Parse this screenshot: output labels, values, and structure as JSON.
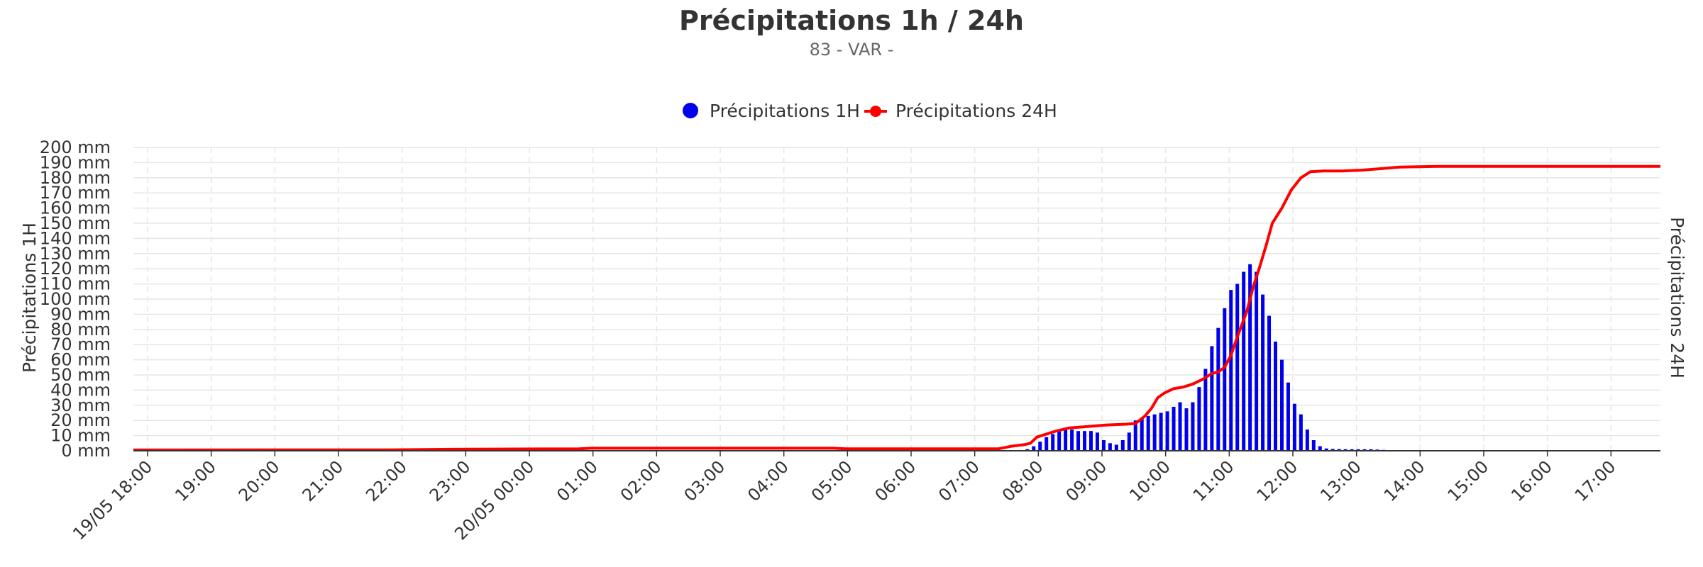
{
  "chart_data": {
    "type": "bar+line",
    "title": "Précipitations 1h / 24h",
    "subtitle": "83 - VAR -",
    "legend_position": "top-center",
    "grid": true,
    "y_left_label": "Précipitations 1H",
    "y_right_label": "Précipitations 24H",
    "ylim": [
      0,
      200
    ],
    "y_ticks": [
      "0 mm",
      "10 mm",
      "20 mm",
      "30 mm",
      "40 mm",
      "50 mm",
      "60 mm",
      "70 mm",
      "80 mm",
      "90 mm",
      "100 mm",
      "110 mm",
      "120 mm",
      "130 mm",
      "140 mm",
      "150 mm",
      "160 mm",
      "170 mm",
      "180 mm",
      "190 mm",
      "200 mm"
    ],
    "x_hour_start": 18,
    "x_hour_end": 42,
    "x_ticks": [
      "19/05 18:00",
      "19:00",
      "20:00",
      "21:00",
      "22:00",
      "23:00",
      "20/05 00:00",
      "01:00",
      "02:00",
      "03:00",
      "04:00",
      "05:00",
      "06:00",
      "07:00",
      "08:00",
      "09:00",
      "10:00",
      "11:00",
      "12:00",
      "13:00",
      "14:00",
      "15:00",
      "16:00",
      "17:00"
    ],
    "colors": {
      "series_1h": "#0000ee",
      "series_24h": "#ff0000",
      "axis": "#333333"
    },
    "series": [
      {
        "name": "Précipitations 1H",
        "kind": "bar",
        "color": "#0000ee",
        "points": [
          [
            31.8,
            0.3
          ],
          [
            31.95,
            0.5
          ],
          [
            32.05,
            1
          ],
          [
            32.15,
            3
          ],
          [
            32.25,
            6
          ],
          [
            32.35,
            9
          ],
          [
            32.45,
            11
          ],
          [
            32.55,
            13
          ],
          [
            32.65,
            14
          ],
          [
            32.75,
            14
          ],
          [
            32.85,
            13
          ],
          [
            32.95,
            13
          ],
          [
            33.05,
            13
          ],
          [
            33.15,
            12
          ],
          [
            33.25,
            7
          ],
          [
            33.35,
            5
          ],
          [
            33.45,
            4
          ],
          [
            33.55,
            7
          ],
          [
            33.65,
            12
          ],
          [
            33.75,
            20
          ],
          [
            33.85,
            21
          ],
          [
            33.95,
            23
          ],
          [
            34.05,
            24
          ],
          [
            34.15,
            25
          ],
          [
            34.25,
            26
          ],
          [
            34.35,
            29
          ],
          [
            34.45,
            32
          ],
          [
            34.55,
            28
          ],
          [
            34.65,
            32
          ],
          [
            34.75,
            42
          ],
          [
            34.85,
            54
          ],
          [
            34.95,
            69
          ],
          [
            35.05,
            81
          ],
          [
            35.15,
            94
          ],
          [
            35.25,
            106
          ],
          [
            35.35,
            110
          ],
          [
            35.45,
            118
          ],
          [
            35.55,
            123
          ],
          [
            35.65,
            118
          ],
          [
            35.75,
            103
          ],
          [
            35.85,
            89
          ],
          [
            35.95,
            72
          ],
          [
            36.05,
            60
          ],
          [
            36.15,
            45
          ],
          [
            36.25,
            31
          ],
          [
            36.35,
            24
          ],
          [
            36.45,
            14
          ],
          [
            36.55,
            7
          ],
          [
            36.65,
            3
          ],
          [
            36.75,
            1.5
          ],
          [
            36.85,
            1.2
          ],
          [
            36.95,
            1.1
          ],
          [
            37.05,
            1
          ],
          [
            37.15,
            1
          ],
          [
            37.25,
            1
          ],
          [
            37.35,
            1
          ],
          [
            37.45,
            1
          ],
          [
            37.55,
            0.8
          ],
          [
            37.65,
            0.6
          ],
          [
            37.75,
            0.3
          ]
        ]
      },
      {
        "name": "Précipitations 24H",
        "kind": "line",
        "color": "#ff0000",
        "points": [
          [
            18.0,
            0.5
          ],
          [
            22.0,
            0.6
          ],
          [
            23.0,
            1.0
          ],
          [
            25.0,
            1.3
          ],
          [
            25.2,
            1.7
          ],
          [
            29.0,
            1.7
          ],
          [
            29.2,
            1.3
          ],
          [
            31.6,
            1.3
          ],
          [
            31.8,
            3
          ],
          [
            32.0,
            4
          ],
          [
            32.1,
            5
          ],
          [
            32.2,
            9
          ],
          [
            32.5,
            13
          ],
          [
            32.7,
            15
          ],
          [
            33.0,
            16
          ],
          [
            33.3,
            17
          ],
          [
            33.6,
            17.5
          ],
          [
            33.75,
            18
          ],
          [
            33.9,
            23
          ],
          [
            34.0,
            28
          ],
          [
            34.1,
            35
          ],
          [
            34.2,
            38
          ],
          [
            34.35,
            41
          ],
          [
            34.5,
            42
          ],
          [
            34.65,
            44
          ],
          [
            34.8,
            47
          ],
          [
            34.95,
            51
          ],
          [
            35.05,
            52
          ],
          [
            35.15,
            55
          ],
          [
            35.25,
            63
          ],
          [
            35.35,
            75
          ],
          [
            35.5,
            92
          ],
          [
            35.6,
            108
          ],
          [
            35.7,
            121
          ],
          [
            35.8,
            135
          ],
          [
            35.9,
            150
          ],
          [
            36.05,
            160
          ],
          [
            36.2,
            172
          ],
          [
            36.35,
            180
          ],
          [
            36.5,
            184
          ],
          [
            36.7,
            184.5
          ],
          [
            37.0,
            184.5
          ],
          [
            37.3,
            185
          ],
          [
            37.6,
            186
          ],
          [
            37.9,
            187
          ],
          [
            38.5,
            187.5
          ],
          [
            39.5,
            187.5
          ],
          [
            42.0,
            187.5
          ]
        ]
      }
    ]
  }
}
